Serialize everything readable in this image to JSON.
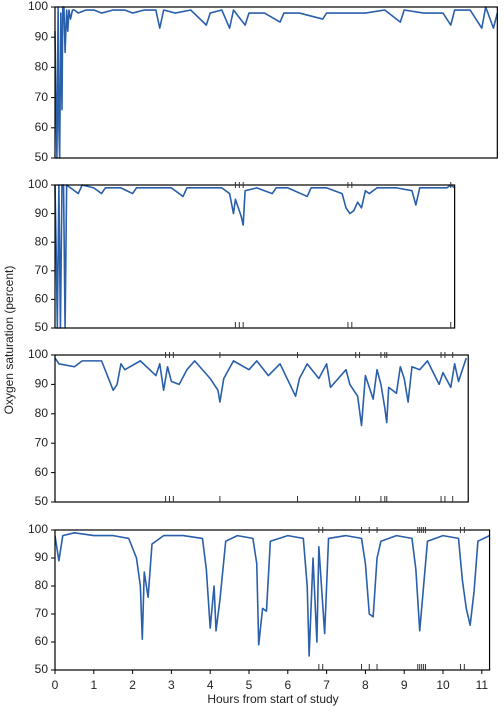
{
  "chart_data": [
    {
      "type": "line",
      "y_label": "Oxygen saturation (percent)",
      "x": [
        0,
        0.02,
        0.05,
        0.08,
        0.1,
        0.12,
        0.15,
        0.18,
        0.2,
        0.23,
        0.26,
        0.3,
        0.33,
        0.36,
        0.4,
        0.45,
        0.5,
        0.6,
        0.8,
        1.0,
        1.2,
        1.5,
        1.8,
        2.0,
        2.3,
        2.6,
        2.7,
        2.8,
        3.1,
        3.5,
        3.9,
        4.0,
        4.3,
        4.5,
        4.6,
        4.9,
        5.0,
        5.4,
        5.8,
        5.9,
        6.3,
        6.9,
        7.0,
        7.5,
        8.0,
        8.5,
        8.9,
        9.0,
        9.5,
        10.0,
        10.2,
        10.3,
        10.7,
        11.0,
        11.1,
        11.3,
        11.4
      ],
      "series": [
        {
          "color": "#2a5faa",
          "values": [
            92,
            72,
            50,
            100,
            60,
            50,
            98,
            66,
            100,
            100,
            85,
            99,
            92,
            99,
            96,
            99,
            99,
            98,
            99,
            99,
            98,
            99,
            99,
            98,
            99,
            99,
            93,
            99,
            98,
            99,
            94,
            98,
            99,
            93,
            99,
            94,
            98,
            98,
            95,
            98,
            98,
            96,
            98,
            98,
            98,
            99,
            95,
            99,
            98,
            98,
            94,
            99,
            99,
            93,
            100,
            93,
            98
          ]
        }
      ],
      "xlim": [
        0,
        11.4
      ],
      "ylim": [
        50,
        100
      ],
      "yticks": [
        50,
        60,
        70,
        80,
        90,
        100
      ]
    },
    {
      "type": "line",
      "x": [
        0,
        0.03,
        0.06,
        0.1,
        0.14,
        0.18,
        0.22,
        0.26,
        0.3,
        0.4,
        0.6,
        0.7,
        1.0,
        1.2,
        1.3,
        1.7,
        2.0,
        2.1,
        2.6,
        3.0,
        3.3,
        3.4,
        3.9,
        4.3,
        4.5,
        4.6,
        4.65,
        4.7,
        4.8,
        4.85,
        4.9,
        5.2,
        5.6,
        5.7,
        6.0,
        6.5,
        6.6,
        7.0,
        7.4,
        7.5,
        7.6,
        7.7,
        7.8,
        7.9,
        8.0,
        8.1,
        8.3,
        8.8,
        9.2,
        9.3,
        9.4,
        9.8,
        10.1,
        10.2,
        10.3
      ],
      "series": [
        {
          "color": "#2a5faa",
          "values": [
            100,
            78,
            50,
            100,
            50,
            100,
            100,
            50,
            100,
            99,
            97,
            100,
            99,
            97,
            99,
            99,
            97,
            99,
            99,
            99,
            96,
            99,
            99,
            99,
            97,
            90,
            95,
            93,
            89,
            86,
            98,
            99,
            97,
            99,
            99,
            96,
            99,
            99,
            97,
            92,
            90,
            91,
            94,
            92,
            98,
            97,
            99,
            99,
            98,
            93,
            99,
            99,
            99,
            100,
            99
          ]
        }
      ],
      "events": [
        4.65,
        4.75,
        4.85,
        7.55,
        7.65,
        10.2
      ],
      "xlim": [
        0,
        10.3
      ],
      "ylim": [
        50,
        100
      ],
      "yticks": [
        50,
        60,
        70,
        80,
        90,
        100
      ]
    },
    {
      "type": "line",
      "x": [
        0,
        0.1,
        0.5,
        0.7,
        1.2,
        1.5,
        1.6,
        1.7,
        1.8,
        2.2,
        2.6,
        2.7,
        2.8,
        2.9,
        3.0,
        3.2,
        3.4,
        3.6,
        4.0,
        4.2,
        4.25,
        4.35,
        4.6,
        5.0,
        5.2,
        5.5,
        5.8,
        6.2,
        6.3,
        6.5,
        6.8,
        7.0,
        7.1,
        7.3,
        7.5,
        7.6,
        7.8,
        7.9,
        8.0,
        8.2,
        8.3,
        8.4,
        8.5,
        8.55,
        8.6,
        8.8,
        8.9,
        9.0,
        9.1,
        9.2,
        9.4,
        9.6,
        9.9,
        10.0,
        10.2,
        10.3,
        10.4,
        10.6
      ],
      "series": [
        {
          "color": "#2a5faa",
          "values": [
            99,
            97,
            96,
            98,
            98,
            88,
            90,
            97,
            95,
            98,
            93,
            97,
            88,
            96,
            91,
            90,
            95,
            98,
            92,
            88,
            84,
            92,
            98,
            95,
            98,
            93,
            97,
            86,
            92,
            97,
            92,
            97,
            89,
            92,
            95,
            90,
            86,
            76,
            93,
            85,
            95,
            90,
            82,
            77,
            89,
            87,
            96,
            92,
            84,
            96,
            95,
            98,
            90,
            94,
            89,
            97,
            91,
            99
          ]
        }
      ],
      "events": [
        2.85,
        2.95,
        3.05,
        4.25,
        6.25,
        7.75,
        7.85,
        8.4,
        8.5,
        8.55,
        9.95,
        10.05,
        10.25
      ],
      "xlim": [
        0,
        10.65
      ],
      "ylim": [
        50,
        100
      ],
      "yticks": [
        50,
        60,
        70,
        80,
        90,
        100
      ]
    },
    {
      "type": "line",
      "x_label": "Hours from start of study",
      "x": [
        0,
        0.1,
        0.2,
        0.5,
        1.0,
        1.5,
        1.9,
        2.1,
        2.2,
        2.25,
        2.3,
        2.4,
        2.5,
        2.8,
        3.3,
        3.8,
        3.9,
        4.0,
        4.1,
        4.15,
        4.25,
        4.4,
        4.7,
        5.1,
        5.2,
        5.25,
        5.35,
        5.45,
        5.55,
        6.0,
        6.4,
        6.5,
        6.55,
        6.65,
        6.75,
        6.8,
        6.95,
        7.05,
        7.5,
        7.9,
        8.0,
        8.1,
        8.2,
        8.3,
        8.4,
        8.8,
        9.2,
        9.3,
        9.4,
        9.5,
        9.6,
        10.0,
        10.4,
        10.5,
        10.6,
        10.7,
        10.8,
        10.9,
        11.2
      ],
      "series": [
        {
          "color": "#2a5faa",
          "values": [
            98,
            89,
            98,
            99,
            98,
            98,
            97,
            90,
            80,
            61,
            85,
            76,
            95,
            98,
            98,
            97,
            86,
            65,
            80,
            64,
            75,
            96,
            98,
            97,
            88,
            59,
            72,
            71,
            96,
            98,
            97,
            80,
            55,
            90,
            60,
            94,
            63,
            97,
            98,
            97,
            88,
            70,
            69,
            90,
            96,
            98,
            97,
            86,
            64,
            80,
            96,
            98,
            97,
            82,
            72,
            66,
            78,
            96,
            98
          ]
        }
      ],
      "events": [
        6.8,
        6.9,
        7.9,
        8.1,
        8.3,
        9.35,
        9.4,
        9.45,
        9.5,
        9.55,
        10.45,
        10.55
      ],
      "xlim": [
        0,
        11.2
      ],
      "ylim": [
        50,
        100
      ],
      "yticks": [
        50,
        60,
        70,
        80,
        90,
        100
      ],
      "xticks": [
        0,
        1,
        2,
        3,
        4,
        5,
        6,
        7,
        8,
        9,
        10,
        11
      ]
    }
  ]
}
